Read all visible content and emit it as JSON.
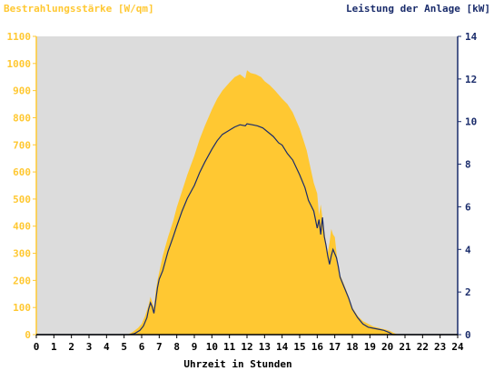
{
  "colors": {
    "plot_bg": "#dcdcdc",
    "area": "#ffc832",
    "line": "#1a2c6b",
    "left_axis": "#ffc832",
    "right_axis": "#1a2c6b",
    "bottom_axis": "#000000"
  },
  "chart_data": {
    "type": "area",
    "title_left": "Bestrahlungsstärke [W/qm]",
    "title_right": "Leistung der Anlage [kW]",
    "xlabel": "Uhrzeit in Stunden",
    "xlim": [
      0,
      24
    ],
    "ylim_left": [
      0,
      1100
    ],
    "ylim_right": [
      0,
      14
    ],
    "x_ticks": [
      "0",
      "1",
      "2",
      "3",
      "4",
      "5",
      "6",
      "7",
      "8",
      "9",
      "10",
      "11",
      "12",
      "13",
      "14",
      "15",
      "16",
      "17",
      "18",
      "19",
      "20",
      "21",
      "22",
      "23",
      "24"
    ],
    "y_left_ticks": [
      "0",
      "100",
      "200",
      "300",
      "400",
      "500",
      "600",
      "700",
      "800",
      "900",
      "1000",
      "1100"
    ],
    "y_right_ticks": [
      "0",
      "2",
      "4",
      "6",
      "8",
      "10",
      "12",
      "14"
    ],
    "grid": false,
    "series": [
      {
        "name": "Bestrahlungsstärke [W/qm]",
        "axis": "left",
        "kind": "area",
        "x": [
          0,
          5.2,
          5.5,
          5.8,
          6.0,
          6.2,
          6.4,
          6.5,
          6.6,
          6.7,
          6.8,
          6.9,
          7.0,
          7.2,
          7.5,
          7.8,
          8.0,
          8.3,
          8.6,
          9.0,
          9.3,
          9.6,
          10.0,
          10.3,
          10.6,
          11.0,
          11.3,
          11.6,
          11.9,
          12.0,
          12.2,
          12.5,
          12.8,
          13.0,
          13.3,
          13.6,
          14.0,
          14.3,
          14.6,
          15.0,
          15.2,
          15.4,
          15.6,
          15.8,
          16.0,
          16.1,
          16.2,
          16.3,
          16.4,
          16.5,
          16.6,
          16.7,
          16.8,
          16.9,
          17.0,
          17.1,
          17.2,
          17.3,
          17.5,
          17.8,
          18.0,
          18.3,
          18.6,
          18.9,
          19.2,
          19.5,
          19.8,
          20.1,
          20.4,
          20.6,
          24
        ],
        "values": [
          0,
          0,
          10,
          25,
          40,
          70,
          110,
          140,
          120,
          100,
          160,
          200,
          230,
          290,
          360,
          420,
          470,
          530,
          590,
          660,
          720,
          770,
          830,
          870,
          900,
          930,
          950,
          960,
          945,
          975,
          965,
          960,
          950,
          935,
          920,
          900,
          870,
          850,
          820,
          760,
          720,
          680,
          620,
          560,
          520,
          440,
          480,
          430,
          380,
          340,
          300,
          340,
          390,
          370,
          360,
          300,
          250,
          220,
          190,
          140,
          100,
          70,
          50,
          40,
          30,
          25,
          20,
          15,
          5,
          0,
          0
        ]
      },
      {
        "name": "Leistung der Anlage [kW]",
        "axis": "right",
        "kind": "line",
        "x": [
          0,
          5.3,
          5.6,
          5.9,
          6.1,
          6.3,
          6.4,
          6.5,
          6.6,
          6.7,
          6.8,
          6.9,
          7.0,
          7.2,
          7.5,
          7.8,
          8.0,
          8.3,
          8.6,
          9.0,
          9.3,
          9.6,
          10.0,
          10.3,
          10.6,
          11.0,
          11.3,
          11.6,
          11.9,
          12.0,
          12.3,
          12.6,
          12.9,
          13.2,
          13.5,
          13.8,
          14.0,
          14.3,
          14.6,
          15.0,
          15.3,
          15.5,
          15.8,
          16.0,
          16.1,
          16.2,
          16.3,
          16.4,
          16.5,
          16.6,
          16.7,
          16.8,
          16.9,
          17.0,
          17.1,
          17.2,
          17.3,
          17.5,
          17.8,
          18.0,
          18.3,
          18.6,
          18.9,
          19.2,
          19.5,
          19.8,
          20.1,
          20.3,
          24
        ],
        "values": [
          0,
          0,
          0.05,
          0.2,
          0.4,
          0.8,
          1.2,
          1.5,
          1.3,
          1.0,
          1.6,
          2.2,
          2.6,
          3.0,
          3.9,
          4.6,
          5.1,
          5.8,
          6.4,
          7.0,
          7.6,
          8.1,
          8.7,
          9.1,
          9.4,
          9.6,
          9.75,
          9.85,
          9.8,
          9.9,
          9.85,
          9.8,
          9.7,
          9.5,
          9.3,
          9.0,
          8.9,
          8.5,
          8.2,
          7.5,
          6.9,
          6.3,
          5.8,
          5.0,
          5.4,
          4.7,
          5.5,
          4.6,
          4.2,
          3.7,
          3.3,
          3.7,
          4.0,
          3.8,
          3.6,
          3.2,
          2.7,
          2.3,
          1.7,
          1.2,
          0.8,
          0.5,
          0.35,
          0.3,
          0.25,
          0.2,
          0.1,
          0.0,
          0
        ]
      }
    ]
  }
}
